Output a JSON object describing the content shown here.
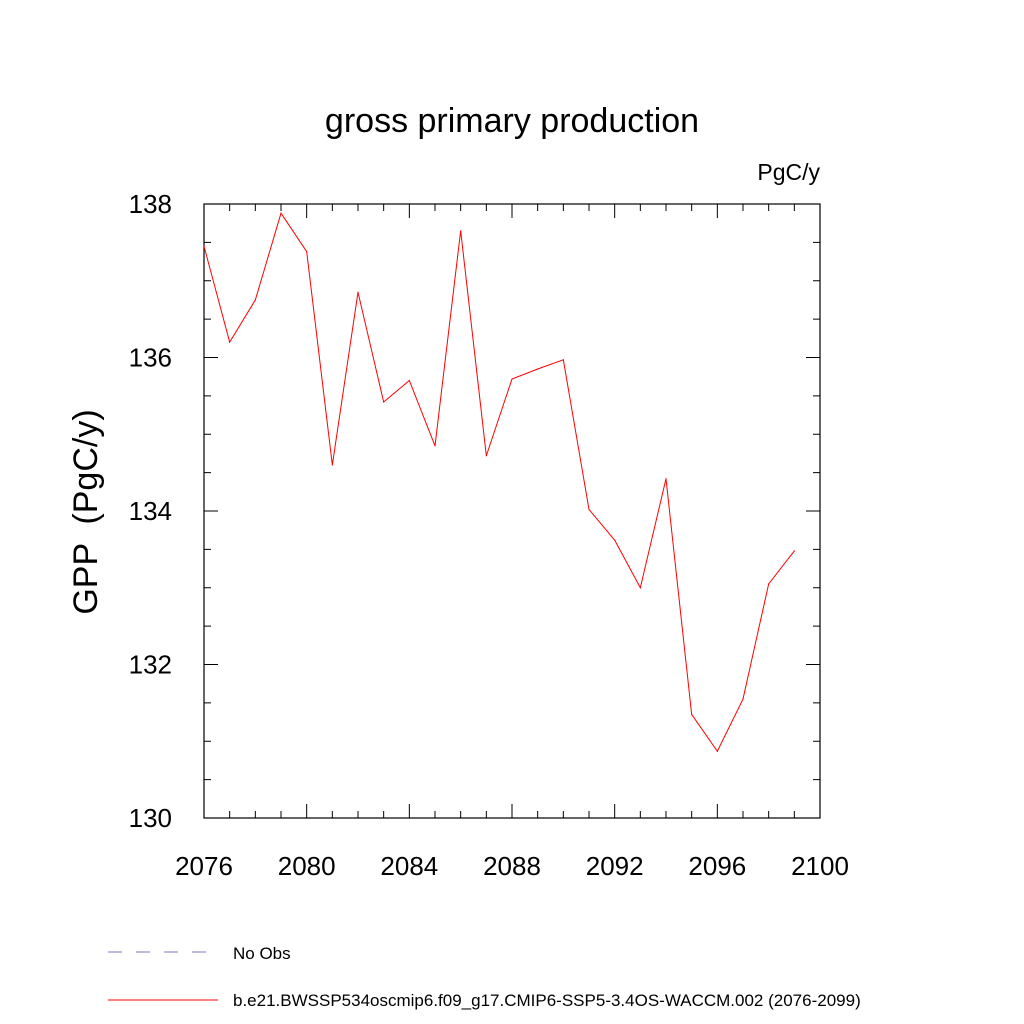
{
  "chart_data": {
    "type": "line",
    "title": "gross primary production",
    "units_label": "PgC/y",
    "ylabel": "GPP  (PgC/y)",
    "xlabel": "",
    "xlim": [
      2076,
      2100
    ],
    "ylim": [
      130,
      138
    ],
    "x_ticks": [
      "2076",
      "2080",
      "2084",
      "2088",
      "2092",
      "2096",
      "2100"
    ],
    "y_ticks": [
      "130",
      "132",
      "134",
      "136",
      "138"
    ],
    "grid": false,
    "legend_position": "bottom",
    "series": [
      {
        "name": "b.e21.BWSSP534oscmip6.f09_g17.CMIP6-SSP5-3.4OS-WACCM.002 (2076-2099)",
        "color": "#ff0000",
        "style": "solid",
        "x": [
          2076,
          2077,
          2078,
          2079,
          2080,
          2081,
          2082,
          2083,
          2084,
          2085,
          2086,
          2087,
          2088,
          2089,
          2090,
          2091,
          2092,
          2093,
          2094,
          2095,
          2096,
          2097,
          2098,
          2099
        ],
        "values": [
          137.45,
          136.2,
          136.75,
          137.88,
          137.38,
          134.6,
          136.85,
          135.42,
          135.7,
          134.85,
          137.65,
          134.72,
          135.72,
          135.85,
          135.97,
          134.02,
          133.62,
          133.0,
          134.42,
          131.35,
          130.87,
          131.55,
          133.05,
          133.48
        ]
      }
    ],
    "legend": [
      {
        "label": "No Obs",
        "color": "#7777bb",
        "style": "dashed"
      },
      {
        "label": "b.e21.BWSSP534oscmip6.f09_g17.CMIP6-SSP5-3.4OS-WACCM.002 (2076-2099)",
        "color": "#ff0000",
        "style": "solid"
      }
    ]
  }
}
